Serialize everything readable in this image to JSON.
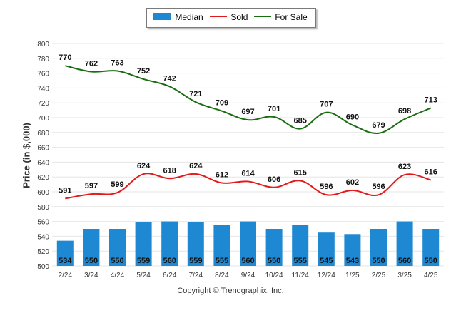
{
  "chart_data": {
    "type": "bar+line",
    "categories": [
      "2/24",
      "3/24",
      "4/24",
      "5/24",
      "6/24",
      "7/24",
      "8/24",
      "9/24",
      "10/24",
      "11/24",
      "12/24",
      "1/25",
      "2/25",
      "3/25",
      "4/25"
    ],
    "ylabel": "Price (in $,000)",
    "ylim": [
      500,
      800
    ],
    "yticks": [
      "500",
      "520",
      "540",
      "560",
      "580",
      "600",
      "620",
      "640",
      "660",
      "680",
      "700",
      "720",
      "740",
      "760",
      "780",
      "800"
    ],
    "grid": true,
    "legend_position": "top-center",
    "series": [
      {
        "name": "Median",
        "kind": "bar",
        "color": "#1f88d2",
        "values": [
          534,
          550,
          550,
          559,
          560,
          559,
          555,
          560,
          550,
          555,
          545,
          543,
          550,
          560,
          550
        ]
      },
      {
        "name": "Sold",
        "kind": "line",
        "color": "#e31a1c",
        "values": [
          591,
          597,
          599,
          624,
          618,
          624,
          612,
          614,
          606,
          615,
          596,
          602,
          596,
          623,
          616
        ]
      },
      {
        "name": "For Sale",
        "kind": "line",
        "color": "#1a6e12",
        "values": [
          770,
          762,
          763,
          752,
          742,
          721,
          709,
          697,
          701,
          685,
          707,
          690,
          679,
          698,
          713
        ]
      }
    ]
  },
  "legend": {
    "median": "Median",
    "sold": "Sold",
    "for_sale": "For Sale"
  },
  "footer": {
    "copyright": "Copyright © Trendgraphix, Inc."
  }
}
